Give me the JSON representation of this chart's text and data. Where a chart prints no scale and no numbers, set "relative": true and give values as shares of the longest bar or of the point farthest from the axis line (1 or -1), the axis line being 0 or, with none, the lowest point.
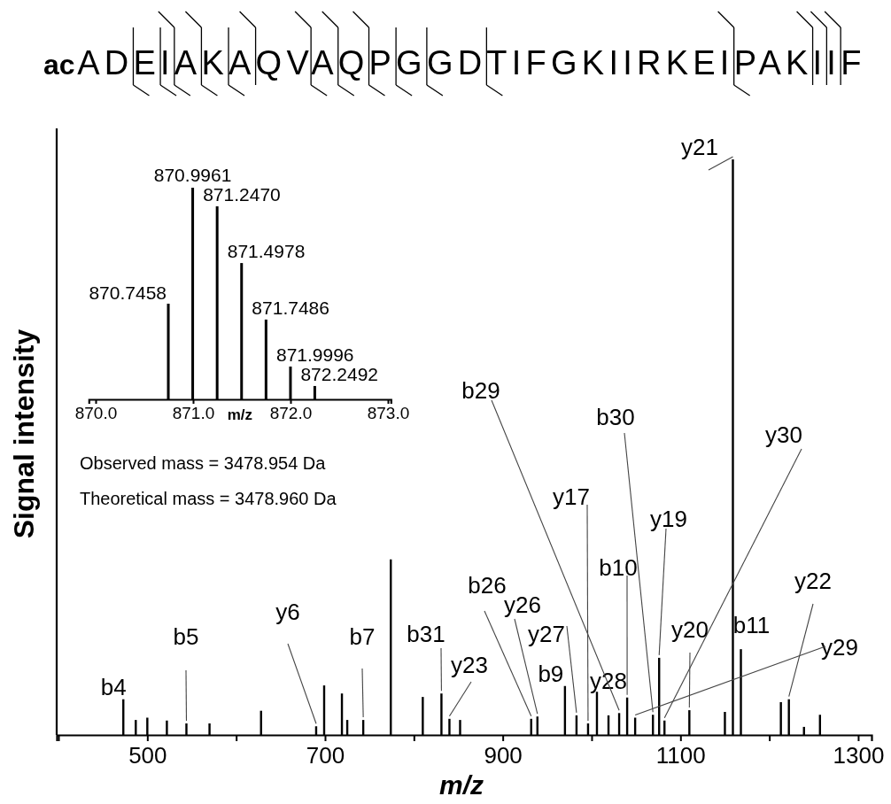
{
  "chart_data": [
    {
      "type": "bar",
      "title": "acADEIAKAQVAQPGGDTIFGKIIRKEIPAKIIF",
      "xlabel": "m/z",
      "ylabel": "Signal intensity",
      "relative": true,
      "color": "#000000",
      "x": [
        473,
        487,
        500,
        522,
        544,
        570,
        628,
        690,
        699,
        719,
        725,
        743,
        774,
        810,
        831,
        840,
        852,
        932,
        939,
        970,
        983,
        996,
        1006,
        1019,
        1031,
        1040,
        1049,
        1069,
        1076,
        1082,
        1110,
        1150,
        1159,
        1168,
        1213,
        1222,
        1239,
        1257
      ],
      "values": [
        0.062,
        0.026,
        0.03,
        0.025,
        0.02,
        0.02,
        0.042,
        0.015,
        0.086,
        0.072,
        0.026,
        0.026,
        0.305,
        0.066,
        0.072,
        0.028,
        0.026,
        0.028,
        0.032,
        0.085,
        0.034,
        0.02,
        0.075,
        0.034,
        0.038,
        0.065,
        0.03,
        0.035,
        0.134,
        0.025,
        0.043,
        0.04,
        1,
        0.149,
        0.057,
        0.062,
        0.014,
        0.035
      ],
      "xlim": [
        398,
        1315
      ],
      "xticks": [
        {
          "value": 400,
          "label": null
        },
        500,
        {
          "value": 600,
          "label": null
        },
        700,
        {
          "value": 800,
          "label": null
        },
        900,
        {
          "value": 1000,
          "label": null
        },
        1100,
        {
          "value": 1200,
          "label": null
        },
        1300
      ],
      "annotations": [
        {
          "text": "b4",
          "x": 473,
          "y": 0.062
        },
        {
          "text": "b5",
          "x": 544,
          "y": 0.02
        },
        {
          "text": "y6",
          "x": 690,
          "y": 0.015
        },
        {
          "text": "b7",
          "x": 743,
          "y": 0.026
        },
        {
          "text": "b31",
          "x": 831,
          "y": 0.072
        },
        {
          "text": "y23",
          "x": 840,
          "y": 0.028
        },
        {
          "text": "b26",
          "x": 932,
          "y": 0.028
        },
        {
          "text": "y26",
          "x": 939,
          "y": 0.032
        },
        {
          "text": "b9",
          "x": 970,
          "y": 0.085
        },
        {
          "text": "y27",
          "x": 983,
          "y": 0.034
        },
        {
          "text": "y17",
          "x": 996,
          "y": 0.02
        },
        {
          "text": "y28",
          "x": 1019,
          "y": 0.034
        },
        {
          "text": "b29",
          "x": 1031,
          "y": 0.038
        },
        {
          "text": "b10",
          "x": 1040,
          "y": 0.065
        },
        {
          "text": "b30",
          "x": 1069,
          "y": 0.035
        },
        {
          "text": "y19",
          "x": 1076,
          "y": 0.134
        },
        {
          "text": "y30",
          "x": 1082,
          "y": 0.025
        },
        {
          "text": "y20",
          "x": 1110,
          "y": 0.043
        },
        {
          "text": "y21",
          "x": 1159,
          "y": 1
        },
        {
          "text": "b11",
          "x": 1168,
          "y": 0.149
        },
        {
          "text": "y22",
          "x": 1222,
          "y": 0.062
        },
        {
          "text": "y29",
          "x": 1049,
          "y": 0.03
        },
        "Observed mass = 3478.954 Da",
        "Theoretical mass = 3478.960 Da"
      ]
    },
    {
      "type": "bar",
      "xlabel": "m/z",
      "relative": true,
      "color": "#000000",
      "x": [
        870.7458,
        870.9961,
        871.247,
        871.4978,
        871.7486,
        871.9996,
        872.2492
      ],
      "values": [
        0.452,
        1,
        0.912,
        0.644,
        0.377,
        0.155,
        0.063
      ],
      "annotations": [
        {
          "text": "870.7458",
          "x": 870.7458,
          "y": 0.452
        },
        {
          "text": "870.9961",
          "x": 870.9961,
          "y": 1
        },
        {
          "text": "871.2470",
          "x": 871.247,
          "y": 0.912
        },
        {
          "text": "871.4978",
          "x": 871.4978,
          "y": 0.644
        },
        {
          "text": "871.7486",
          "x": 871.7486,
          "y": 0.377
        },
        {
          "text": "871.9996",
          "x": 871.9996,
          "y": 0.155
        },
        {
          "text": "872.2492",
          "x": 872.2492,
          "y": 0.063
        }
      ],
      "xlim": [
        869.93,
        873.03
      ],
      "xticks": [
        {
          "value": 870,
          "label": "870.0"
        },
        {
          "value": 871,
          "label": "871.0"
        },
        {
          "value": 872,
          "label": "872.0"
        },
        {
          "value": 873,
          "label": "873.0"
        }
      ]
    }
  ]
}
